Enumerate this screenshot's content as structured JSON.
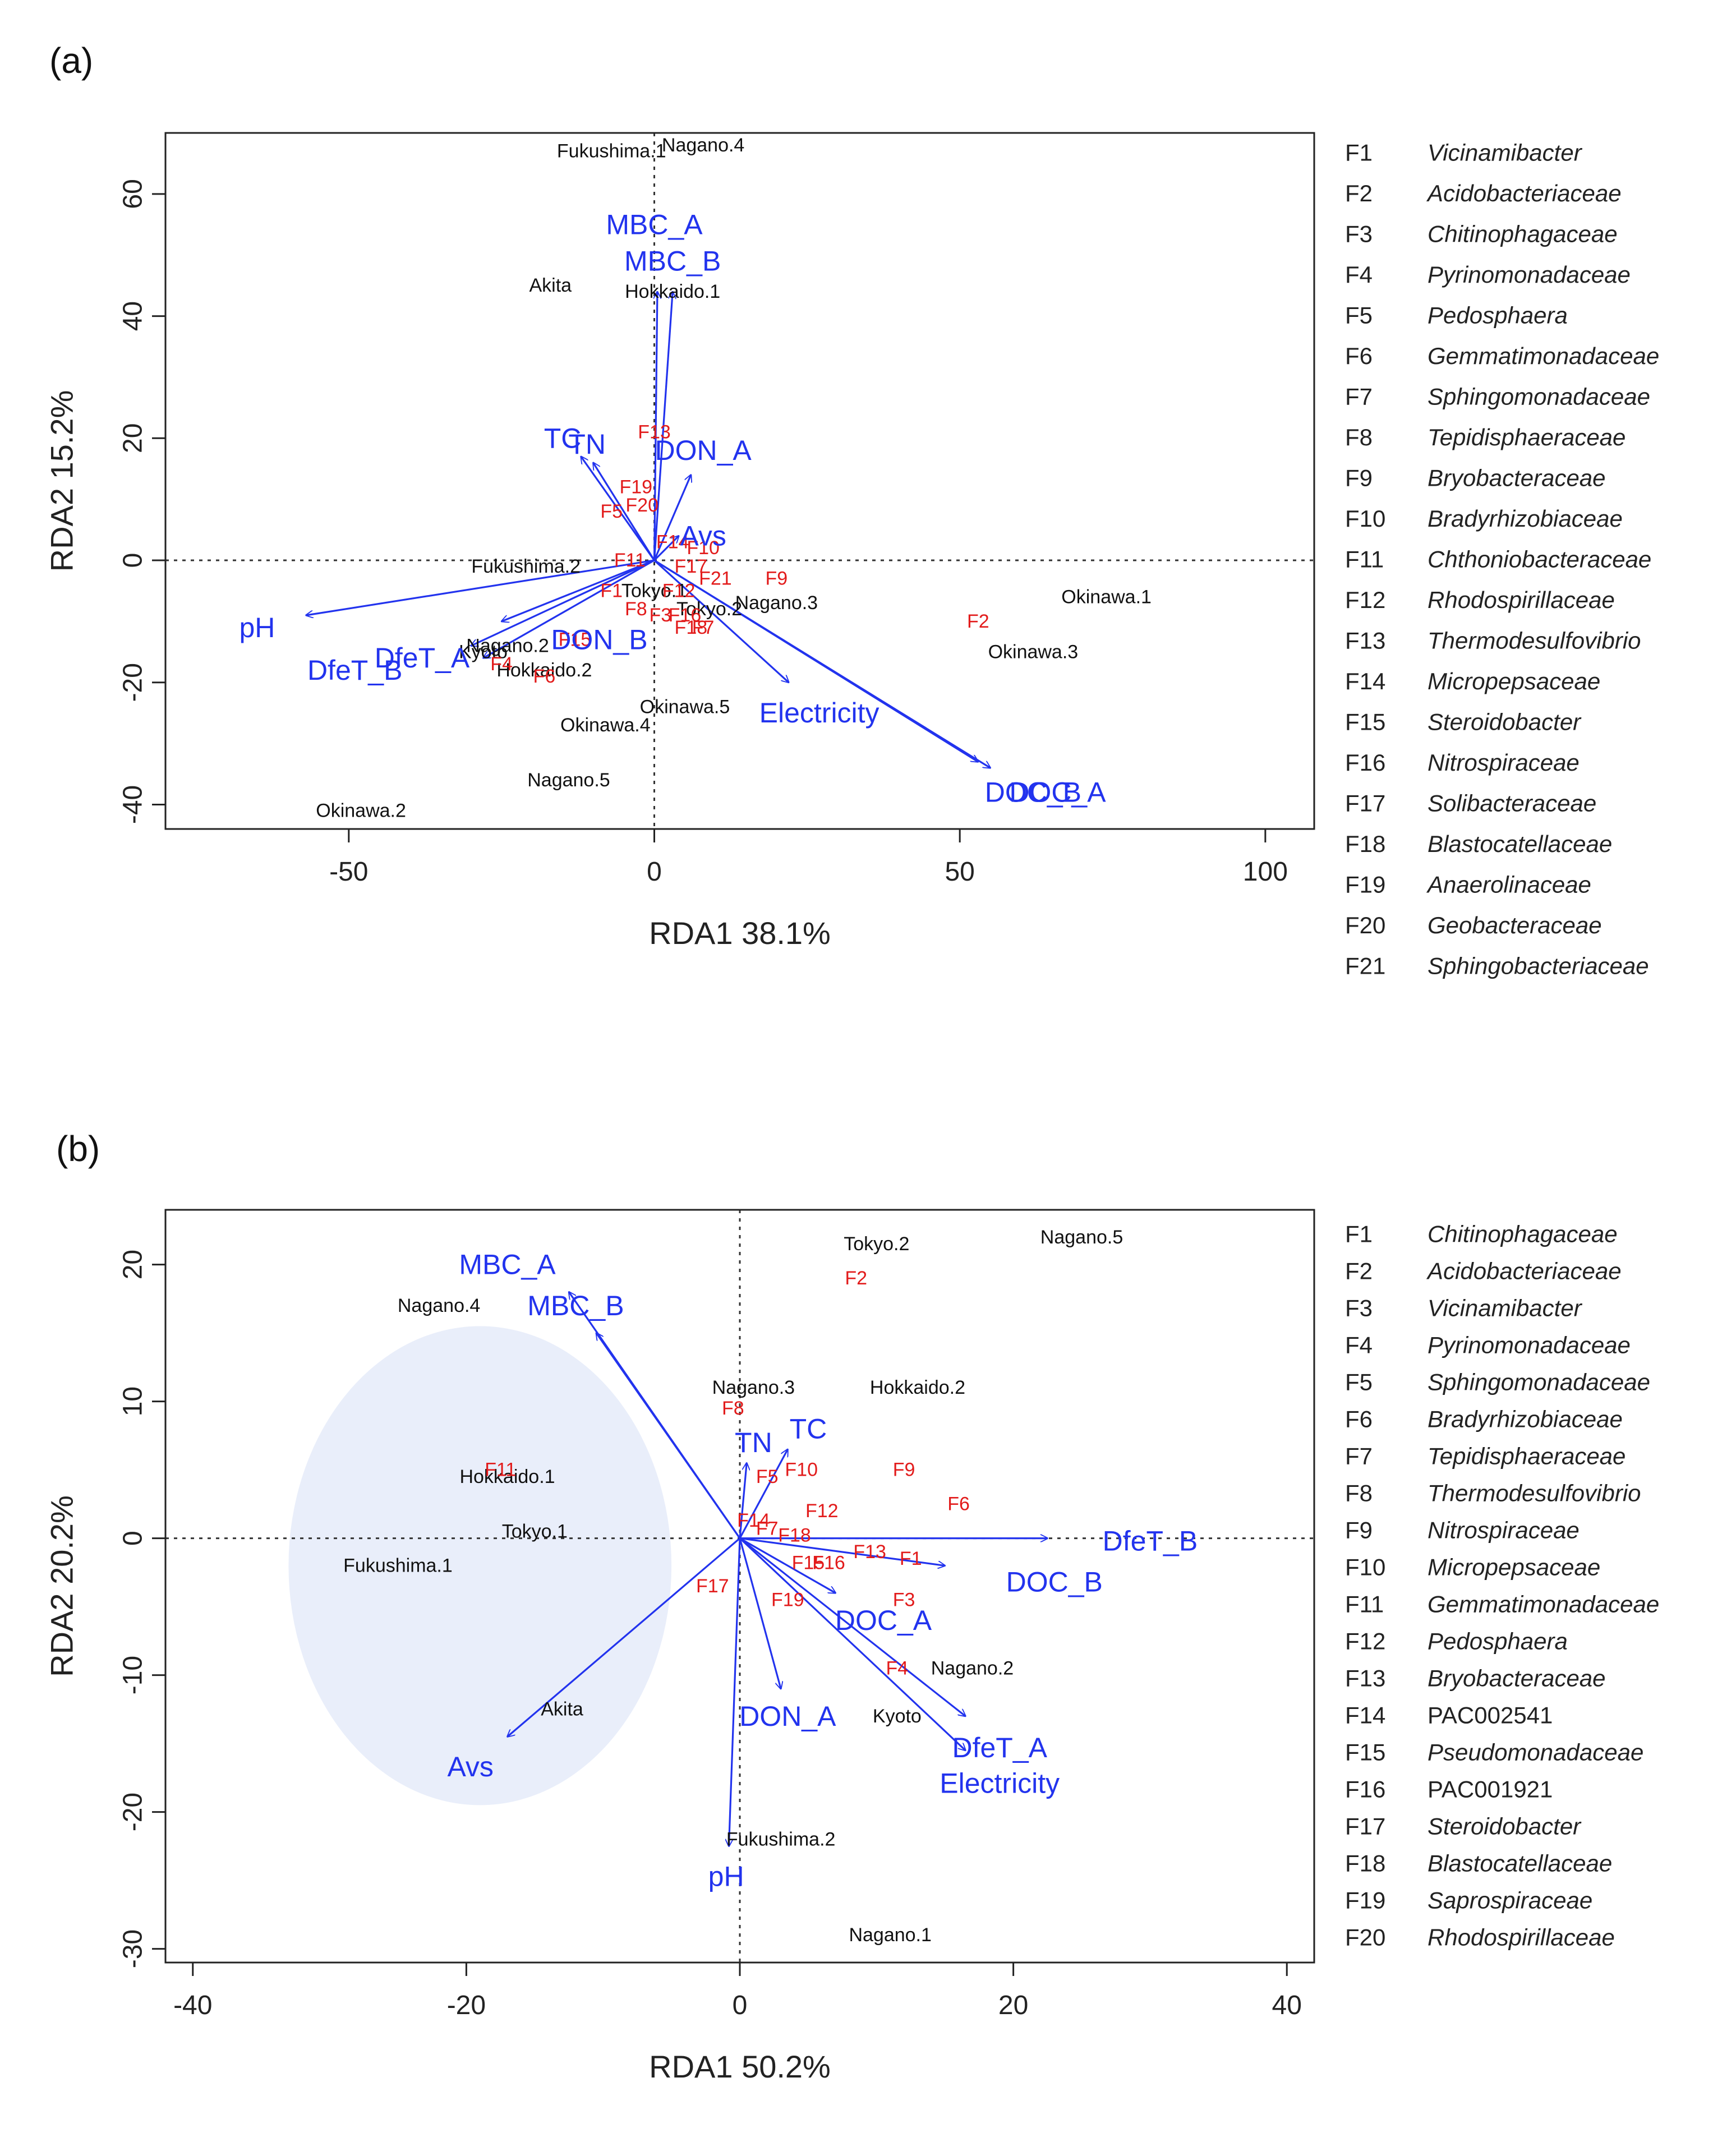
{
  "chart_data": [
    {
      "type": "scatter",
      "subtype": "rda-biplot",
      "panel_label": "(a)",
      "xlabel": "RDA1 38.1%",
      "ylabel": "RDA2 15.2%",
      "xlim": [
        -80,
        108
      ],
      "ylim": [
        -44,
        70
      ],
      "xticks": [
        -50,
        0,
        50,
        100
      ],
      "yticks": [
        -40,
        -20,
        0,
        20,
        40,
        60
      ],
      "reference_lines": {
        "x": 0,
        "y": 0,
        "style": "dotted"
      },
      "sites": [
        {
          "label": "Fukushima.1",
          "x": -7,
          "y": 67
        },
        {
          "label": "Nagano.4",
          "x": 8,
          "y": 68
        },
        {
          "label": "Akita",
          "x": -17,
          "y": 45
        },
        {
          "label": "Hokkaido.1",
          "x": 3,
          "y": 44
        },
        {
          "label": "Fukushima.2",
          "x": -21,
          "y": -1
        },
        {
          "label": "Tokyo.1",
          "x": 0,
          "y": -5
        },
        {
          "label": "Tokyo.2",
          "x": 9,
          "y": -8
        },
        {
          "label": "Nagano.3",
          "x": 20,
          "y": -7
        },
        {
          "label": "Okinawa.1",
          "x": 74,
          "y": -6
        },
        {
          "label": "Okinawa.3",
          "x": 62,
          "y": -15
        },
        {
          "label": "Nagano.2",
          "x": -24,
          "y": -14
        },
        {
          "label": "Kyoto",
          "x": -28,
          "y": -15
        },
        {
          "label": "Hokkaido.2",
          "x": -18,
          "y": -18
        },
        {
          "label": "Okinawa.5",
          "x": 5,
          "y": -24
        },
        {
          "label": "Okinawa.4",
          "x": -8,
          "y": -27
        },
        {
          "label": "Nagano.5",
          "x": -14,
          "y": -36
        },
        {
          "label": "Okinawa.2",
          "x": -48,
          "y": -41
        }
      ],
      "taxa": [
        {
          "label": "F13",
          "x": 0,
          "y": 21
        },
        {
          "label": "F19",
          "x": -3,
          "y": 12
        },
        {
          "label": "F20",
          "x": -2,
          "y": 9
        },
        {
          "label": "F5",
          "x": -7,
          "y": 8
        },
        {
          "label": "F14",
          "x": 3,
          "y": 3
        },
        {
          "label": "F10",
          "x": 8,
          "y": 2
        },
        {
          "label": "F11",
          "x": -4,
          "y": 0
        },
        {
          "label": "F17",
          "x": 6,
          "y": -1
        },
        {
          "label": "F21",
          "x": 10,
          "y": -3
        },
        {
          "label": "F9",
          "x": 20,
          "y": -3
        },
        {
          "label": "F12",
          "x": 4,
          "y": -5
        },
        {
          "label": "F1",
          "x": -7,
          "y": -5
        },
        {
          "label": "F8",
          "x": -3,
          "y": -8
        },
        {
          "label": "F3",
          "x": 1,
          "y": -9
        },
        {
          "label": "F16",
          "x": 5,
          "y": -9
        },
        {
          "label": "F18",
          "x": 6,
          "y": -11
        },
        {
          "label": "F7",
          "x": 8,
          "y": -11
        },
        {
          "label": "F2",
          "x": 53,
          "y": -10
        },
        {
          "label": "F15",
          "x": -13,
          "y": -13
        },
        {
          "label": "F4",
          "x": -25,
          "y": -17
        },
        {
          "label": "F6",
          "x": -18,
          "y": -19
        }
      ],
      "env_vectors": [
        {
          "label": "MBC_A",
          "x": 0.5,
          "y": 44
        },
        {
          "label": "MBC_B",
          "x": 3,
          "y": 44
        },
        {
          "label": "TC",
          "x": -12,
          "y": 17
        },
        {
          "label": "TN",
          "x": -10,
          "y": 16
        },
        {
          "label": "DON_A",
          "x": 6,
          "y": 14
        },
        {
          "label": "Avs",
          "x": 4,
          "y": 4
        },
        {
          "label": "pH",
          "x": -57,
          "y": -9
        },
        {
          "label": "DfeT_A",
          "x": -30,
          "y": -14
        },
        {
          "label": "DfeT_B",
          "x": -28,
          "y": -16
        },
        {
          "label": "DON_B",
          "x": -25,
          "y": -10
        },
        {
          "label": "Electricity",
          "x": 22,
          "y": -20
        },
        {
          "label": "DOC_A",
          "x": 55,
          "y": -34
        },
        {
          "label": "DOC_B",
          "x": 53,
          "y": -33
        }
      ],
      "env_label_positions": [
        {
          "label": "MBC_A",
          "x": 0,
          "y": 55
        },
        {
          "label": "MBC_B",
          "x": 3,
          "y": 49
        },
        {
          "label": "TC",
          "x": -15,
          "y": 20
        },
        {
          "label": "TN",
          "x": -11,
          "y": 19
        },
        {
          "label": "DON_A",
          "x": 8,
          "y": 18
        },
        {
          "label": "Avs",
          "x": 8,
          "y": 4
        },
        {
          "label": "pH",
          "x": -65,
          "y": -11
        },
        {
          "label": "DfeT_A",
          "x": -38,
          "y": -16
        },
        {
          "label": "DfeT_B",
          "x": -49,
          "y": -18
        },
        {
          "label": "DON_B",
          "x": -9,
          "y": -13
        },
        {
          "label": "Electricity",
          "x": 27,
          "y": -25
        },
        {
          "label": "DOC_B",
          "x": 62,
          "y": -38
        },
        {
          "label": "DOC_A",
          "x": 66,
          "y": -38
        }
      ],
      "legend": [
        {
          "code": "F1",
          "name": "Vicinamibacter"
        },
        {
          "code": "F2",
          "name": "Acidobacteriaceae"
        },
        {
          "code": "F3",
          "name": "Chitinophagaceae"
        },
        {
          "code": "F4",
          "name": "Pyrinomonadaceae"
        },
        {
          "code": "F5",
          "name": "Pedosphaera"
        },
        {
          "code": "F6",
          "name": "Gemmatimonadaceae"
        },
        {
          "code": "F7",
          "name": "Sphingomonadaceae"
        },
        {
          "code": "F8",
          "name": "Tepidisphaeraceae"
        },
        {
          "code": "F9",
          "name": "Bryobacteraceae"
        },
        {
          "code": "F10",
          "name": "Bradyrhizobiaceae"
        },
        {
          "code": "F11",
          "name": "Chthoniobacteraceae"
        },
        {
          "code": "F12",
          "name": "Rhodospirillaceae"
        },
        {
          "code": "F13",
          "name": "Thermodesulfovibrio"
        },
        {
          "code": "F14",
          "name": "Micropepsaceae"
        },
        {
          "code": "F15",
          "name": "Steroidobacter"
        },
        {
          "code": "F16",
          "name": "Nitrospiraceae"
        },
        {
          "code": "F17",
          "name": "Solibacteraceae"
        },
        {
          "code": "F18",
          "name": "Blastocatellaceae"
        },
        {
          "code": "F19",
          "name": "Anaerolinaceae"
        },
        {
          "code": "F20",
          "name": "Geobacteraceae"
        },
        {
          "code": "F21",
          "name": "Sphingobacteriaceae"
        }
      ]
    },
    {
      "type": "scatter",
      "subtype": "rda-biplot",
      "panel_label": "(b)",
      "xlabel": "RDA1 50.2%",
      "ylabel": "RDA2 20.2%",
      "xlim": [
        -42,
        42
      ],
      "ylim": [
        -31,
        24
      ],
      "xticks": [
        -40,
        -20,
        0,
        20,
        40
      ],
      "yticks": [
        -30,
        -20,
        -10,
        0,
        10,
        20
      ],
      "reference_lines": {
        "x": 0,
        "y": 0,
        "style": "dotted"
      },
      "highlight_ellipse": {
        "cx": -19,
        "cy": -2,
        "rx": 14,
        "ry": 17.5,
        "color": "#e9eefa"
      },
      "sites": [
        {
          "label": "Tokyo.2",
          "x": 10,
          "y": 21.5
        },
        {
          "label": "Nagano.5",
          "x": 25,
          "y": 22
        },
        {
          "label": "Nagano.4",
          "x": -22,
          "y": 17
        },
        {
          "label": "Nagano.3",
          "x": 1,
          "y": 11
        },
        {
          "label": "Hokkaido.2",
          "x": 13,
          "y": 11
        },
        {
          "label": "Hokkaido.1",
          "x": -17,
          "y": 4.5
        },
        {
          "label": "Tokyo.1",
          "x": -15,
          "y": 0.5
        },
        {
          "label": "Fukushima.1",
          "x": -25,
          "y": -2
        },
        {
          "label": "Nagano.2",
          "x": 17,
          "y": -9.5
        },
        {
          "label": "Kyoto",
          "x": 11.5,
          "y": -13
        },
        {
          "label": "Akita",
          "x": -13,
          "y": -12.5
        },
        {
          "label": "Fukushima.2",
          "x": 3,
          "y": -22
        },
        {
          "label": "Nagano.1",
          "x": 11,
          "y": -29
        }
      ],
      "taxa": [
        {
          "label": "F2",
          "x": 8.5,
          "y": 19
        },
        {
          "label": "F8",
          "x": -0.5,
          "y": 9.5
        },
        {
          "label": "F10",
          "x": 4.5,
          "y": 5
        },
        {
          "label": "F5",
          "x": 2,
          "y": 4.5
        },
        {
          "label": "F9",
          "x": 12,
          "y": 5
        },
        {
          "label": "F11",
          "x": -17.5,
          "y": 5
        },
        {
          "label": "F6",
          "x": 16,
          "y": 2.5
        },
        {
          "label": "F12",
          "x": 6,
          "y": 2
        },
        {
          "label": "F14",
          "x": 1,
          "y": 1.3
        },
        {
          "label": "F7",
          "x": 2,
          "y": 0.7
        },
        {
          "label": "F18",
          "x": 4,
          "y": 0.2
        },
        {
          "label": "F13",
          "x": 9.5,
          "y": -1
        },
        {
          "label": "F1",
          "x": 12.5,
          "y": -1.5
        },
        {
          "label": "F15",
          "x": 5,
          "y": -1.8
        },
        {
          "label": "F16",
          "x": 6.5,
          "y": -1.8
        },
        {
          "label": "F17",
          "x": -2,
          "y": -3.5
        },
        {
          "label": "F19",
          "x": 3.5,
          "y": -4.5
        },
        {
          "label": "F3",
          "x": 12,
          "y": -4.5
        },
        {
          "label": "F4",
          "x": 11.5,
          "y": -9.5
        }
      ],
      "env_vectors": [
        {
          "label": "MBC_A",
          "x": -12.5,
          "y": 18
        },
        {
          "label": "MBC_B",
          "x": -10.5,
          "y": 15
        },
        {
          "label": "TN",
          "x": 0.5,
          "y": 5.5
        },
        {
          "label": "TC",
          "x": 3.5,
          "y": 6.5
        },
        {
          "label": "DfeT_B",
          "x": 22.5,
          "y": 0
        },
        {
          "label": "DOC_B",
          "x": 15,
          "y": -2
        },
        {
          "label": "DOC_A",
          "x": 7,
          "y": -4
        },
        {
          "label": "DON_A",
          "x": 3,
          "y": -11
        },
        {
          "label": "DfeT_A",
          "x": 16.5,
          "y": -13
        },
        {
          "label": "Electricity",
          "x": 16.5,
          "y": -15.5
        },
        {
          "label": "Avs",
          "x": -17,
          "y": -14.5
        },
        {
          "label": "pH",
          "x": -0.8,
          "y": -22.5
        }
      ],
      "env_label_positions": [
        {
          "label": "MBC_A",
          "x": -17,
          "y": 20
        },
        {
          "label": "MBC_B",
          "x": -12,
          "y": 17
        },
        {
          "label": "TN",
          "x": 1,
          "y": 7
        },
        {
          "label": "TC",
          "x": 5,
          "y": 8
        },
        {
          "label": "DfeT_B",
          "x": 30,
          "y": -0.2
        },
        {
          "label": "DOC_B",
          "x": 23,
          "y": -3.2
        },
        {
          "label": "DOC_A",
          "x": 10.5,
          "y": -6
        },
        {
          "label": "DON_A",
          "x": 3.5,
          "y": -13
        },
        {
          "label": "DfeT_A",
          "x": 19,
          "y": -15.3
        },
        {
          "label": "Electricity",
          "x": 19,
          "y": -17.9
        },
        {
          "label": "Avs",
          "x": -19.7,
          "y": -16.7
        },
        {
          "label": "pH",
          "x": -1,
          "y": -24.7
        }
      ],
      "legend": [
        {
          "code": "F1",
          "name": "Chitinophagaceae"
        },
        {
          "code": "F2",
          "name": "Acidobacteriaceae"
        },
        {
          "code": "F3",
          "name": "Vicinamibacter"
        },
        {
          "code": "F4",
          "name": "Pyrinomonadaceae"
        },
        {
          "code": "F5",
          "name": "Sphingomonadaceae"
        },
        {
          "code": "F6",
          "name": "Bradyrhizobiaceae"
        },
        {
          "code": "F7",
          "name": "Tepidisphaeraceae"
        },
        {
          "code": "F8",
          "name": "Thermodesulfovibrio"
        },
        {
          "code": "F9",
          "name": "Nitrospiraceae"
        },
        {
          "code": "F10",
          "name": "Micropepsaceae"
        },
        {
          "code": "F11",
          "name": "Gemmatimonadaceae"
        },
        {
          "code": "F12",
          "name": "Pedosphaera"
        },
        {
          "code": "F13",
          "name": "Bryobacteraceae"
        },
        {
          "code": "F14",
          "name": "PAC002541",
          "plain": true
        },
        {
          "code": "F15",
          "name": "Pseudomonadaceae"
        },
        {
          "code": "F16",
          "name": "PAC001921",
          "plain": true
        },
        {
          "code": "F17",
          "name": "Steroidobacter"
        },
        {
          "code": "F18",
          "name": "Blastocatellaceae"
        },
        {
          "code": "F19",
          "name": "Saprospiraceae"
        },
        {
          "code": "F20",
          "name": "Rhodospirillaceae"
        }
      ]
    }
  ],
  "colors": {
    "env": "#2233ee",
    "taxa": "#e21b1b",
    "sites": "#111111",
    "axis": "#222222",
    "ellipse": "#e9eefa"
  }
}
